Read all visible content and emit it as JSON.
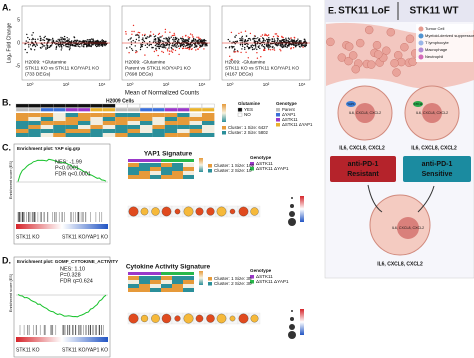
{
  "panel_a": {
    "label": "A.",
    "y_axis_label": "Log₂ Fold Change",
    "x_axis_label": "Mean of Normalized Counts",
    "y_ticks": [
      "5",
      "0",
      "-5"
    ],
    "x_ticks": [
      "10⁰",
      "10²",
      "10⁴"
    ],
    "plots": [
      {
        "title": "H2009: +Glutamine",
        "comparison": "STK11 KO vs STK11 KO/YAP1 KO",
        "degs": "(733 DEGs)"
      },
      {
        "title": "H2009: -Glutamine",
        "comparison": "Parent vs STK11 KO/YAP1 KO",
        "degs": "(7698 DEGs)"
      },
      {
        "title": "H2009: -Glutamine",
        "comparison": "STK11 KO vs STK11 KO/YAP1 KO",
        "degs": "(4167 DEGs)"
      }
    ]
  },
  "panel_b": {
    "label": "B.",
    "heatmap_title": "H2009 Cells",
    "glutamine_title": "Glutamine",
    "glutamine_levels": [
      "YES",
      "NO"
    ],
    "genotype_title": "Genotype",
    "genotypes": [
      "Parent",
      "ΔYAP1",
      "ΔSTK11",
      "ΔSTK11 ΔYAP1"
    ],
    "clusters": [
      "Cluster: 1 Size: 6427",
      "Cluster: 2 Size: 5802"
    ]
  },
  "panel_c": {
    "label": "C.",
    "enrichment_title": "Enrichment plot: YAP sig.grp",
    "stats": [
      "NES: -1.99",
      "P<0.0001",
      "FDR q<0.0001"
    ],
    "es_axis": "Enrichment score (ES)",
    "groups": [
      "STK11 KO",
      "STK11 KO/YAP1 KO"
    ],
    "signature_title": "YAP1 Signature",
    "genotype_title": "Genotype",
    "genotypes": [
      "ΔSTK11",
      "ΔSTK11 ΔYAP1"
    ],
    "clusters": [
      "Cluster: 1 Size: 102",
      "Cluster: 2 Size: 10"
    ]
  },
  "panel_d": {
    "label": "D.",
    "enrichment_title": "Enrichment plot: GOMF_CYTOKINE_ACTIVITY",
    "stats": [
      "NES: 1.10",
      "P=0.328",
      "FDR q=0.624"
    ],
    "es_axis": "Enrichment score (ES)",
    "groups": [
      "STK11 KO",
      "STK11 KO/YAP1 KO"
    ],
    "signature_title": "Cytokine Activity Signature",
    "genotype_title": "Genotype",
    "genotypes": [
      "ΔSTK11",
      "ΔSTK11 ΔYAP1"
    ],
    "clusters": [
      "Cluster: 1 Size: 35",
      "Cluster: 2 Size: 30"
    ]
  },
  "panel_e": {
    "label": "E.",
    "left_title": "STK11 LoF",
    "right_title": "STK11 WT",
    "legend": [
      "Tumor Cell",
      "Myeloid-derived suppressor cell",
      "T lymphocyte",
      "Macrophage",
      "Neutrophil"
    ],
    "cytokines_left": "IL6, CXCL8, CXCL2",
    "cytokines_right": "IL6, CXCL8, CXCL2",
    "cytokines_bottom": "IL6, CXCL8, CXCL2",
    "outcome_left": [
      "anti-PD-1",
      "Resistant"
    ],
    "outcome_right": [
      "anti-PD-1",
      "Sensitive"
    ],
    "cell_label": "IL6, CXCL8, CXCL2",
    "gene_labels": [
      "YAP1",
      "STK11"
    ]
  }
}
